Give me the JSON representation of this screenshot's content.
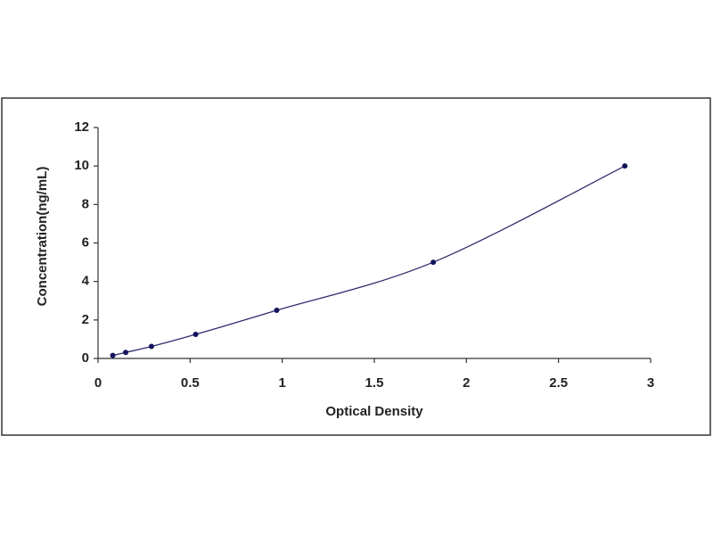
{
  "chart_data": {
    "type": "line",
    "x_label": "Optical Density",
    "y_label": "Concentration(ng/mL)",
    "x": [
      0.08,
      0.15,
      0.29,
      0.53,
      0.97,
      1.82,
      2.86
    ],
    "values": [
      0.156,
      0.312,
      0.625,
      1.25,
      2.5,
      5,
      10
    ],
    "color": "#2e2e6e",
    "marker_color": "#14145e",
    "smooth": true,
    "markers": true,
    "xlim": [
      0,
      3
    ],
    "xticks": [
      0,
      0.5,
      1,
      1.5,
      2,
      2.5,
      3
    ],
    "ylim": [
      0,
      12
    ],
    "yticks": [
      0,
      2,
      4,
      6,
      8,
      10,
      12
    ],
    "grid": false
  }
}
